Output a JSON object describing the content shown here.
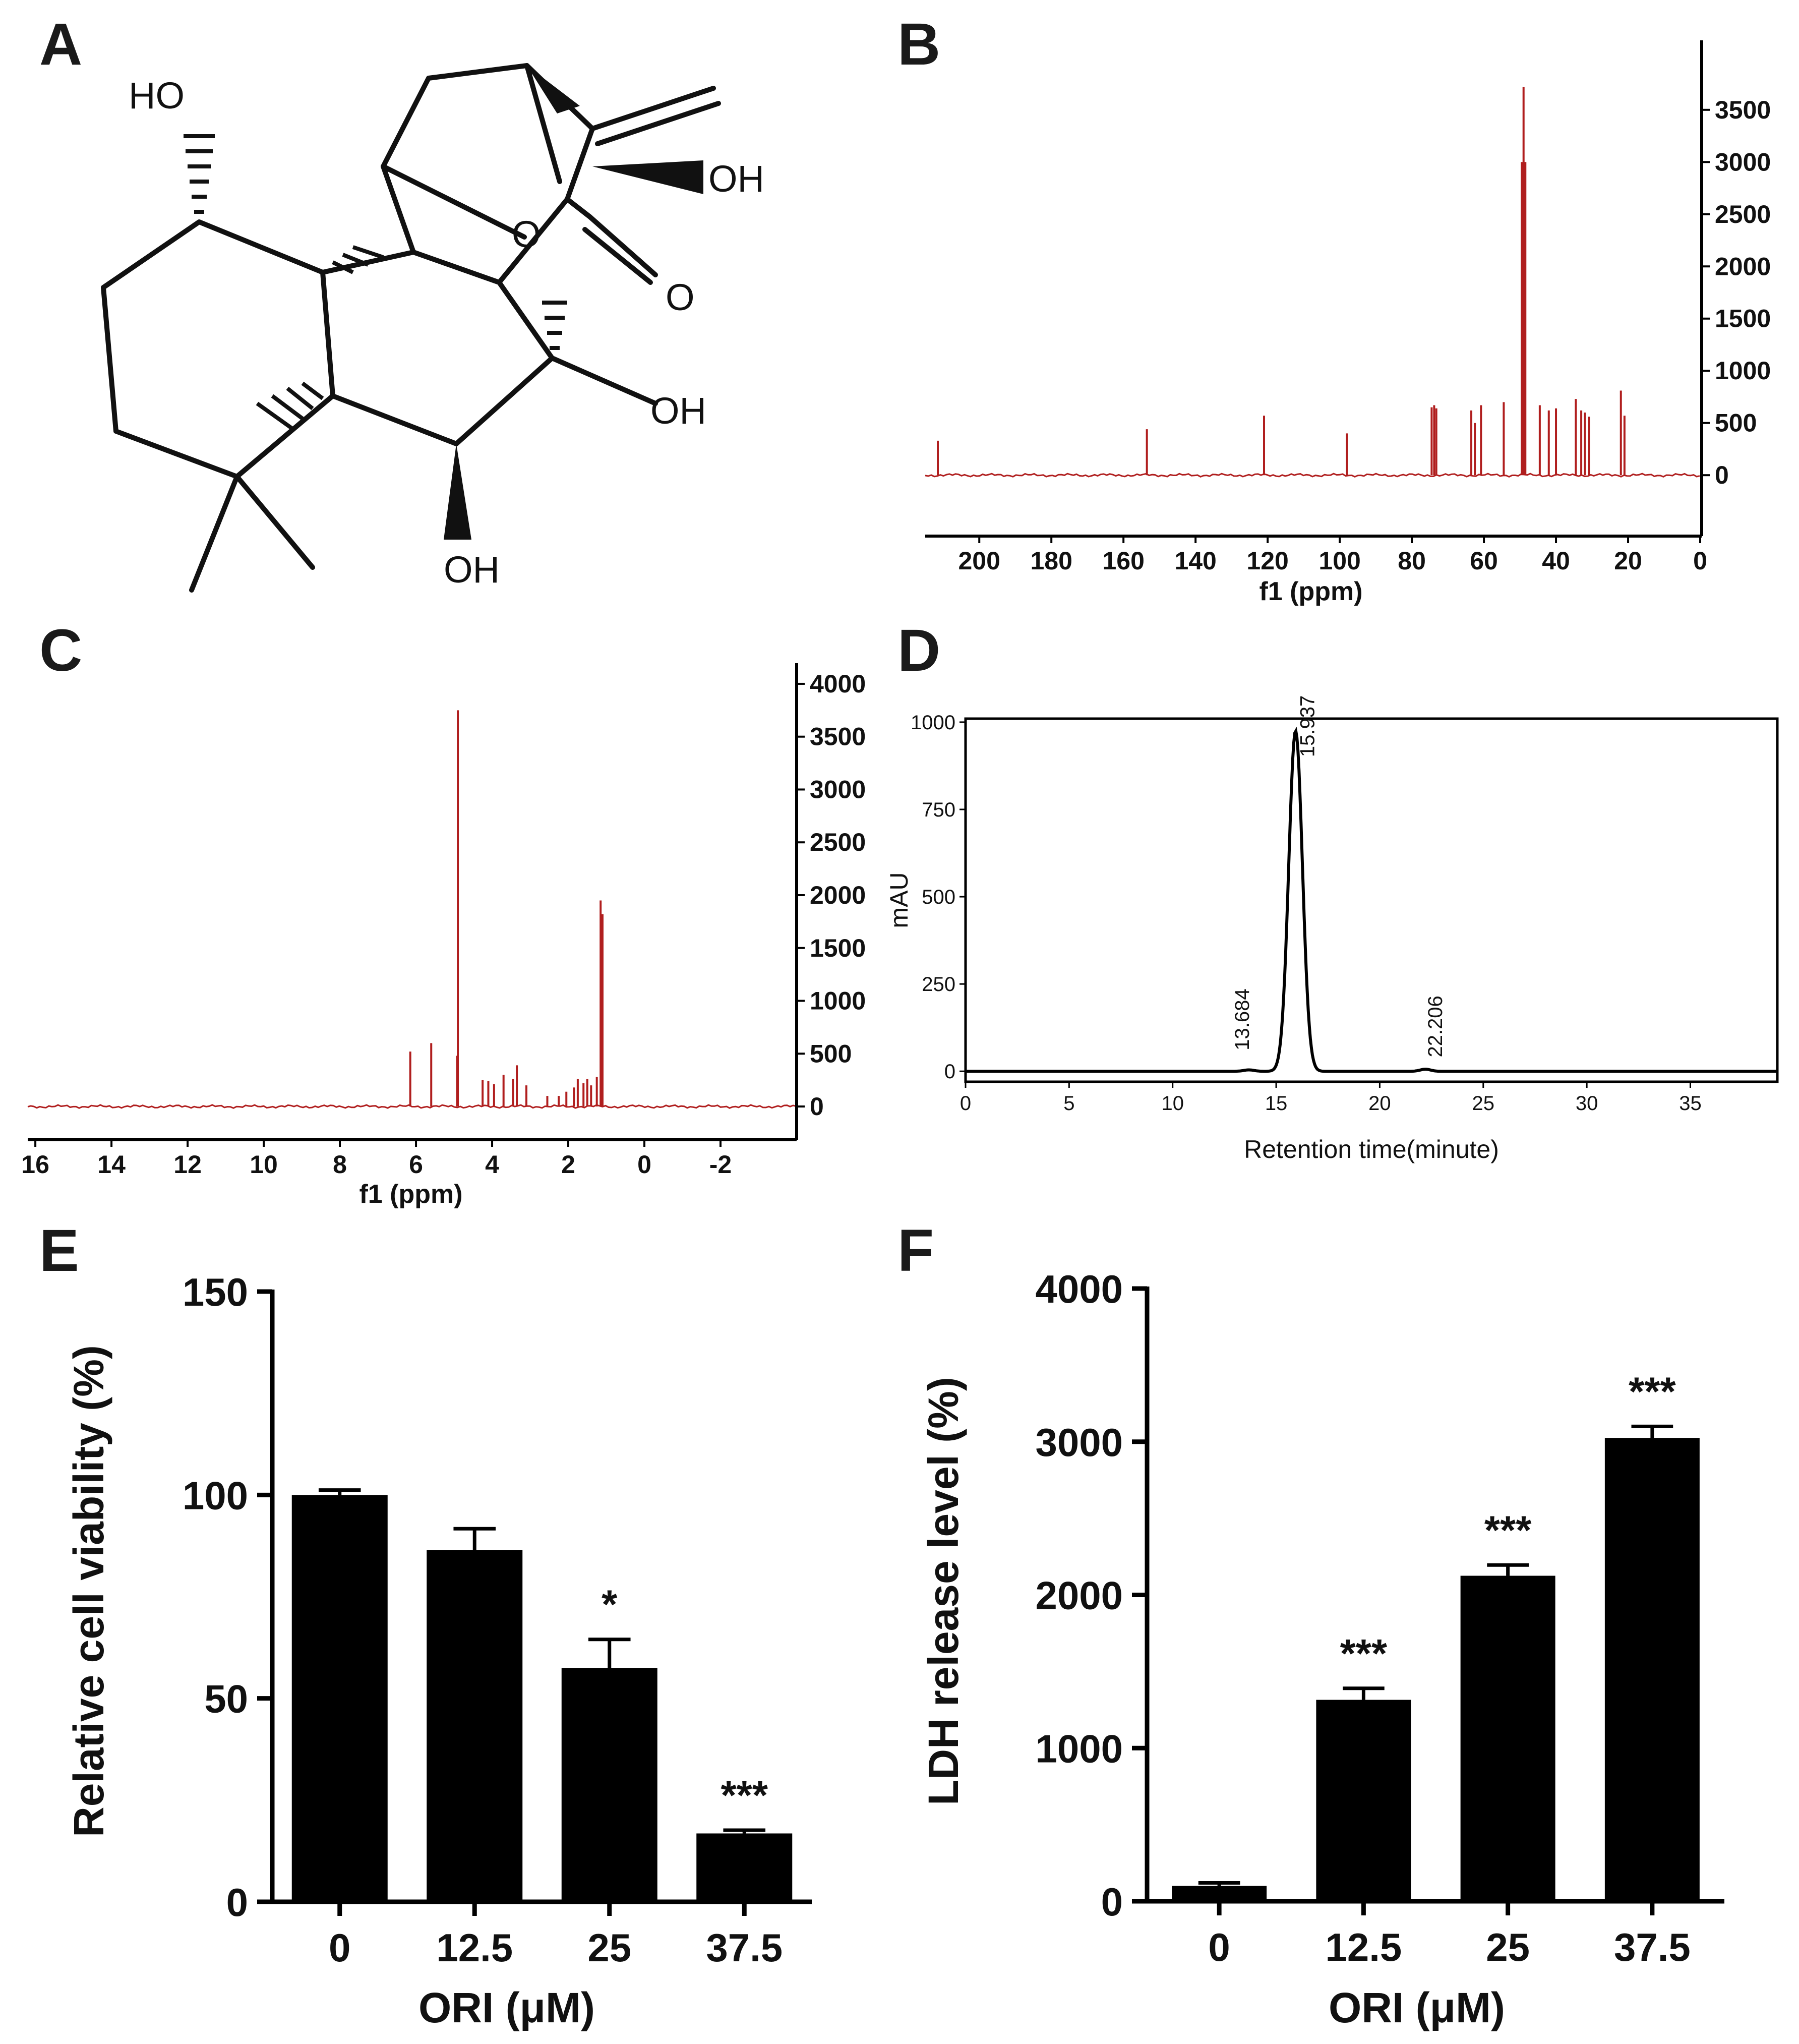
{
  "panels": {
    "A": "A",
    "B": "B",
    "C": "C",
    "D": "D",
    "E": "E",
    "F": "F"
  },
  "structure": {
    "atoms": [
      "HO",
      "OH",
      "O",
      "O",
      "OH",
      "OH"
    ]
  },
  "colors": {
    "nmr": "#b01e1e",
    "bars": "#000000",
    "axis": "#000000"
  },
  "chart_data": [
    {
      "id": "B",
      "type": "line",
      "xlabel": "f1 (ppm)",
      "ylabel": "",
      "x_ticks": [
        "200",
        "180",
        "160",
        "140",
        "120",
        "100",
        "80",
        "60",
        "40",
        "20",
        "0"
      ],
      "y_ticks": [
        "0",
        "500",
        "1000",
        "1500",
        "2000",
        "2500",
        "3000",
        "3500"
      ],
      "xlim": [
        215,
        0
      ],
      "ylim": [
        -400,
        3900
      ],
      "x_reversed": true,
      "y_axis_side": "right",
      "peaks": [
        {
          "x": 211.5,
          "y": 330
        },
        {
          "x": 153.5,
          "y": 440
        },
        {
          "x": 121.0,
          "y": 570
        },
        {
          "x": 98.0,
          "y": 400
        },
        {
          "x": 74.5,
          "y": 650
        },
        {
          "x": 73.8,
          "y": 670
        },
        {
          "x": 73.2,
          "y": 640
        },
        {
          "x": 63.5,
          "y": 620
        },
        {
          "x": 62.5,
          "y": 500
        },
        {
          "x": 60.8,
          "y": 670
        },
        {
          "x": 54.5,
          "y": 700
        },
        {
          "x": 49.5,
          "y": 3000
        },
        {
          "x": 49.0,
          "y": 3720
        },
        {
          "x": 48.5,
          "y": 3000
        },
        {
          "x": 44.5,
          "y": 670
        },
        {
          "x": 42.0,
          "y": 620
        },
        {
          "x": 40.0,
          "y": 640
        },
        {
          "x": 34.5,
          "y": 730
        },
        {
          "x": 33.0,
          "y": 620
        },
        {
          "x": 32.0,
          "y": 600
        },
        {
          "x": 30.8,
          "y": 560
        },
        {
          "x": 22.0,
          "y": 810
        },
        {
          "x": 21.0,
          "y": 570
        }
      ]
    },
    {
      "id": "C",
      "type": "line",
      "xlabel": "f1 (ppm)",
      "ylabel": "",
      "x_ticks": [
        "16",
        "14",
        "12",
        "10",
        "8",
        "6",
        "4",
        "2",
        "0",
        "-2"
      ],
      "y_ticks": [
        "0",
        "500",
        "1000",
        "1500",
        "2000",
        "2500",
        "3000",
        "3500",
        "4000"
      ],
      "xlim": [
        16.2,
        -4.0
      ],
      "ylim": [
        -100,
        4100
      ],
      "x_reversed": true,
      "y_axis_side": "right",
      "peaks": [
        {
          "x": 6.15,
          "y": 520
        },
        {
          "x": 5.6,
          "y": 600
        },
        {
          "x": 4.9,
          "y": 3750
        },
        {
          "x": 4.92,
          "y": 480
        },
        {
          "x": 4.25,
          "y": 250
        },
        {
          "x": 4.1,
          "y": 240
        },
        {
          "x": 3.95,
          "y": 210
        },
        {
          "x": 3.7,
          "y": 300
        },
        {
          "x": 3.45,
          "y": 260
        },
        {
          "x": 3.35,
          "y": 390
        },
        {
          "x": 3.1,
          "y": 200
        },
        {
          "x": 2.55,
          "y": 100
        },
        {
          "x": 2.25,
          "y": 100
        },
        {
          "x": 2.05,
          "y": 140
        },
        {
          "x": 1.85,
          "y": 180
        },
        {
          "x": 1.75,
          "y": 260
        },
        {
          "x": 1.6,
          "y": 220
        },
        {
          "x": 1.5,
          "y": 260
        },
        {
          "x": 1.4,
          "y": 200
        },
        {
          "x": 1.25,
          "y": 280
        },
        {
          "x": 1.15,
          "y": 1950
        },
        {
          "x": 1.1,
          "y": 1820
        }
      ]
    },
    {
      "id": "D",
      "type": "line",
      "xlabel": "Retention time(minute)",
      "ylabel": "mAU",
      "x_ticks": [
        "0",
        "5",
        "10",
        "15",
        "20",
        "25",
        "30",
        "35"
      ],
      "y_ticks": [
        "0",
        "250",
        "500",
        "750",
        "1000"
      ],
      "xlim": [
        0,
        39.2
      ],
      "ylim": [
        -30,
        1010
      ],
      "peaks": [
        {
          "x": 13.684,
          "y": 4,
          "label": "13.684"
        },
        {
          "x": 15.937,
          "y": 975,
          "label": "15.937"
        },
        {
          "x": 22.206,
          "y": 6,
          "label": "22.206"
        }
      ]
    },
    {
      "id": "E",
      "type": "bar",
      "xlabel": "ORI (μM)",
      "ylabel": "Relative cell viability (%)",
      "categories": [
        "0",
        "12.5",
        "25",
        "37.5"
      ],
      "values": [
        100,
        86.5,
        57.5,
        16.8
      ],
      "errors": [
        1.2,
        5.2,
        7.0,
        0.8
      ],
      "significance": [
        "",
        "",
        "*",
        "***"
      ],
      "y_ticks": [
        "0",
        "50",
        "100",
        "150"
      ],
      "ylim": [
        0,
        150
      ]
    },
    {
      "id": "F",
      "type": "bar",
      "xlabel": "ORI (μM)",
      "ylabel": "LDH release level (%)",
      "categories": [
        "0",
        "12.5",
        "25",
        "37.5"
      ],
      "values": [
        100,
        1315,
        2125,
        3025
      ],
      "errors": [
        20,
        75,
        70,
        75
      ],
      "significance": [
        "",
        "***",
        "***",
        "***"
      ],
      "y_ticks": [
        "0",
        "1000",
        "2000",
        "3000",
        "4000"
      ],
      "ylim": [
        0,
        4000
      ]
    }
  ]
}
